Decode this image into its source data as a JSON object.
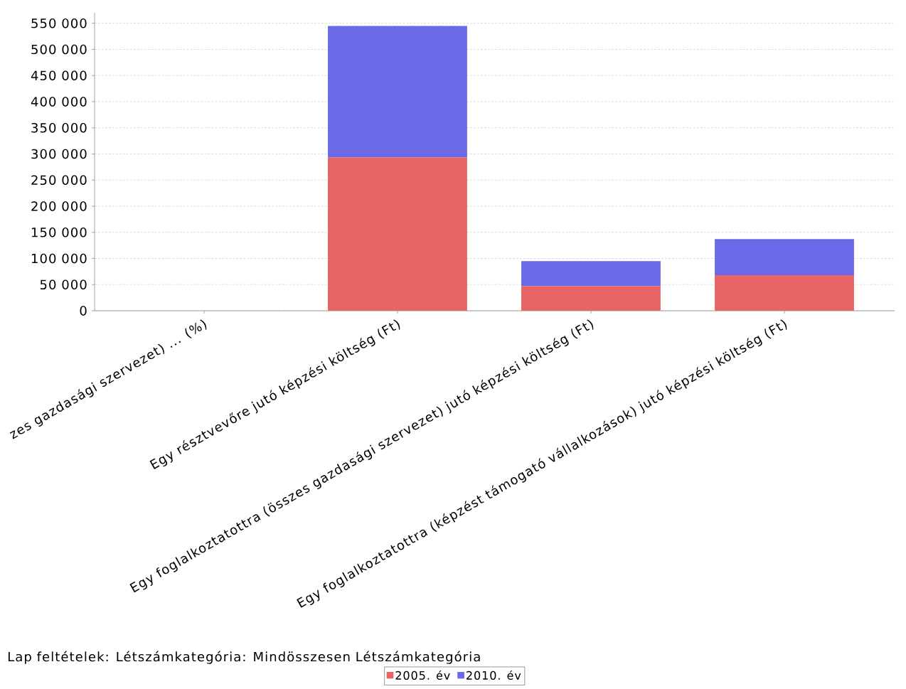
{
  "chart_data": {
    "type": "bar",
    "stacked": true,
    "categories": [
      "zes gazdasági szervezet) ... (%)",
      "Egy résztvevőre jutó képzési költség (Ft)",
      "Egy foglalkoztatottra (összes gazdasági szervezet) jutó képzési költség (Ft)",
      "Egy foglalkoztatottra (képzést támogató vállalkozások) jutó képzési költség (Ft)"
    ],
    "series": [
      {
        "name": "2005. év",
        "color": "#e86464",
        "values": [
          null,
          293000,
          47000,
          68000
        ]
      },
      {
        "name": "2010. év",
        "color": "#6a6ae8",
        "values": [
          null,
          252000,
          48000,
          69000
        ]
      }
    ],
    "ylim": [
      0,
      570000
    ],
    "yticks": [
      0,
      {
        "value": 50000,
        "label": "50 000"
      },
      {
        "value": 100000,
        "label": "100 000"
      },
      {
        "value": 150000,
        "label": "150 000"
      },
      {
        "value": 200000,
        "label": "200 000"
      },
      {
        "value": 250000,
        "label": "250 000"
      },
      {
        "value": 300000,
        "label": "300 000"
      },
      {
        "value": 350000,
        "label": "350 000"
      },
      {
        "value": 400000,
        "label": "400 000"
      },
      {
        "value": 450000,
        "label": "450 000"
      },
      {
        "value": 500000,
        "label": "500 000"
      },
      {
        "value": 550000,
        "label": "550 000"
      }
    ],
    "grid": "y",
    "legend": "bottom",
    "annotations": [
      "Lap feltételek: Létszámkategória: Mindösszesen Létszámkategória"
    ]
  }
}
